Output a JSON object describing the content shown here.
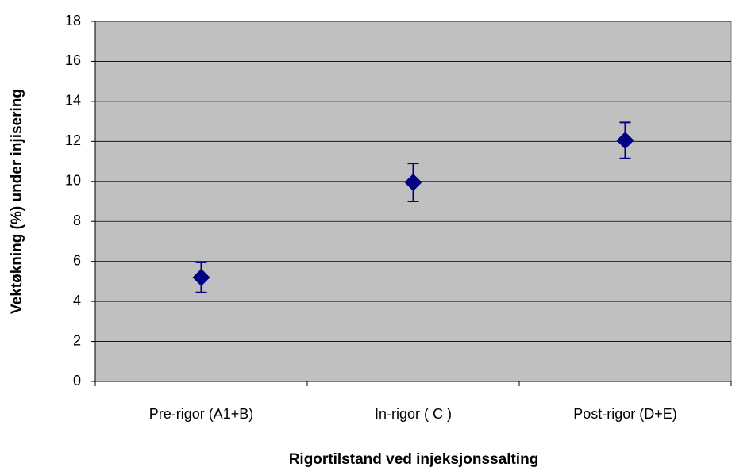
{
  "chart_data": {
    "type": "dot",
    "categories": [
      "Pre-rigor (A1+B)",
      "In-rigor ( C )",
      "Post-rigor (D+E)"
    ],
    "values": [
      5.2,
      9.95,
      12.05
    ],
    "errors": [
      0.75,
      0.95,
      0.9
    ],
    "color": "#000080",
    "x_label": "Rigortilstand ved injeksjonssalting",
    "y_label": "Vektøkning (%) under injisering",
    "ylim": [
      0,
      18
    ],
    "yticks": [
      0,
      2,
      4,
      6,
      8,
      10,
      12,
      14,
      16,
      18
    ],
    "grid": true
  }
}
